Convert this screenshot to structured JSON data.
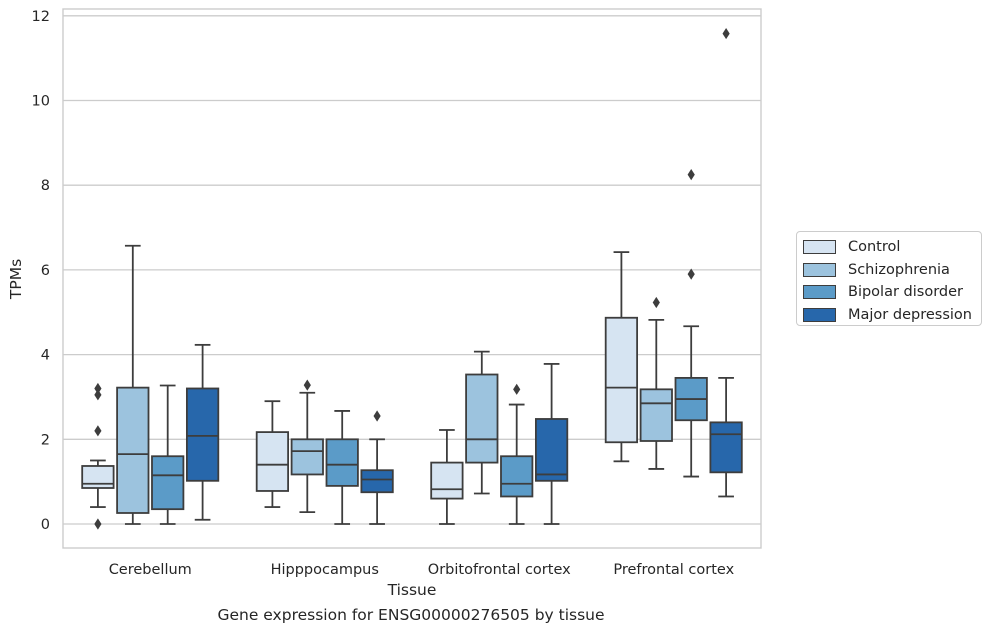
{
  "chart_data": {
    "type": "boxplot",
    "caption": "Gene expression for ENSG00000276505 by tissue",
    "xlabel": "Tissue",
    "ylabel": "TPMs",
    "ylim": [
      -0.55,
      12.2
    ],
    "yticks": [
      "0",
      "2",
      "4",
      "6",
      "8",
      "10",
      "12"
    ],
    "grid": true,
    "legend_position": "right",
    "categories": [
      "Cerebellum",
      "Hipppocampus",
      "Orbitofrontal cortex",
      "Prefrontal cortex"
    ],
    "series": [
      {
        "name": "Control",
        "color": "#d6e4f2",
        "boxes": [
          {
            "whisker_low": 0.4,
            "q1": 0.85,
            "median": 0.95,
            "q3": 1.37,
            "whisker_high": 1.5,
            "outliers": [
              0.0,
              2.2,
              3.05,
              3.2
            ]
          },
          {
            "whisker_low": 0.4,
            "q1": 0.78,
            "median": 1.4,
            "q3": 2.17,
            "whisker_high": 2.9,
            "outliers": []
          },
          {
            "whisker_low": 0.0,
            "q1": 0.6,
            "median": 0.82,
            "q3": 1.45,
            "whisker_high": 2.22,
            "outliers": []
          },
          {
            "whisker_low": 1.48,
            "q1": 1.93,
            "median": 3.22,
            "q3": 4.87,
            "whisker_high": 6.42,
            "outliers": []
          }
        ]
      },
      {
        "name": "Schizophrenia",
        "color": "#9cc3de",
        "boxes": [
          {
            "whisker_low": 0.0,
            "q1": 0.26,
            "median": 1.65,
            "q3": 3.22,
            "whisker_high": 6.57,
            "outliers": []
          },
          {
            "whisker_low": 0.28,
            "q1": 1.17,
            "median": 1.72,
            "q3": 2.0,
            "whisker_high": 3.1,
            "outliers": [
              3.28
            ]
          },
          {
            "whisker_low": 0.72,
            "q1": 1.45,
            "median": 2.0,
            "q3": 3.53,
            "whisker_high": 4.07,
            "outliers": []
          },
          {
            "whisker_low": 1.3,
            "q1": 1.96,
            "median": 2.85,
            "q3": 3.18,
            "whisker_high": 4.82,
            "outliers": [
              5.23
            ]
          }
        ]
      },
      {
        "name": "Bipolar disorder",
        "color": "#5b9bc8",
        "boxes": [
          {
            "whisker_low": 0.0,
            "q1": 0.35,
            "median": 1.15,
            "q3": 1.6,
            "whisker_high": 3.27,
            "outliers": []
          },
          {
            "whisker_low": 0.0,
            "q1": 0.9,
            "median": 1.4,
            "q3": 2.0,
            "whisker_high": 2.67,
            "outliers": []
          },
          {
            "whisker_low": 0.0,
            "q1": 0.65,
            "median": 0.95,
            "q3": 1.6,
            "whisker_high": 2.82,
            "outliers": [
              3.18
            ]
          },
          {
            "whisker_low": 1.12,
            "q1": 2.45,
            "median": 2.95,
            "q3": 3.45,
            "whisker_high": 4.67,
            "outliers": [
              5.9,
              8.25
            ]
          }
        ]
      },
      {
        "name": "Major depression",
        "color": "#2767ab",
        "boxes": [
          {
            "whisker_low": 0.1,
            "q1": 1.02,
            "median": 2.08,
            "q3": 3.2,
            "whisker_high": 4.23,
            "outliers": []
          },
          {
            "whisker_low": 0.0,
            "q1": 0.75,
            "median": 1.05,
            "q3": 1.27,
            "whisker_high": 2.0,
            "outliers": [
              2.55
            ]
          },
          {
            "whisker_low": 0.0,
            "q1": 1.02,
            "median": 1.17,
            "q3": 2.48,
            "whisker_high": 3.78,
            "outliers": []
          },
          {
            "whisker_low": 0.65,
            "q1": 1.22,
            "median": 2.12,
            "q3": 2.4,
            "whisker_high": 3.45,
            "outliers": [
              11.58
            ]
          }
        ]
      }
    ]
  }
}
